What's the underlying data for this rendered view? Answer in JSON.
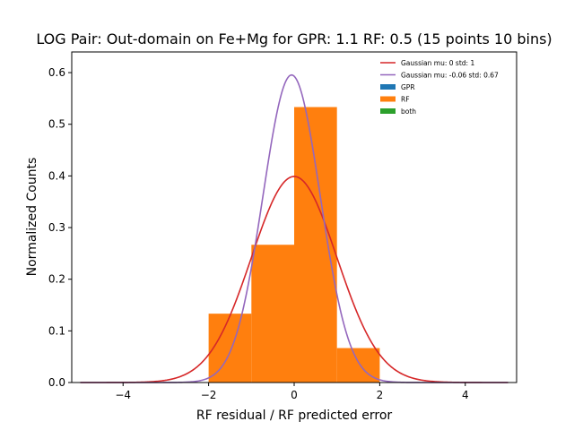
{
  "chart_data": {
    "type": "histogram",
    "title": "LOG Pair: Out-domain on Fe+Mg for GPR: 1.1 RF: 0.5 (15 points 10 bins)",
    "xlabel": "RF residual / RF predicted error",
    "ylabel": "Normalized Counts",
    "xlim": [
      -5.2,
      5.2
    ],
    "ylim": [
      0,
      0.64
    ],
    "xticks": [
      -4,
      -2,
      0,
      2,
      4
    ],
    "xtick_labels": [
      "−4",
      "−2",
      "0",
      "2",
      "4"
    ],
    "yticks": [
      0.0,
      0.1,
      0.2,
      0.3,
      0.4,
      0.5,
      0.6
    ],
    "ytick_labels": [
      "0.0",
      "0.1",
      "0.2",
      "0.3",
      "0.4",
      "0.5",
      "0.6"
    ],
    "grid": false,
    "legend_position": "top-right",
    "bars": {
      "bin_edges": [
        -2,
        -1,
        0,
        1,
        2
      ],
      "values": [
        0.1333,
        0.2667,
        0.5333,
        0.0667
      ],
      "series_name": "RF",
      "color": "#ff7f0e"
    },
    "curves": [
      {
        "name": "Gaussian mu: 0 std: 1",
        "mu": 0,
        "std": 1,
        "x_range": [
          -5,
          5
        ],
        "color": "#d62728"
      },
      {
        "name": "Gaussian mu: -0.06 std: 0.67",
        "mu": -0.06,
        "std": 0.67,
        "x_range": [
          -5,
          5
        ],
        "color": "#9467bd"
      }
    ],
    "legend": [
      {
        "label": "Gaussian mu: 0 std: 1",
        "kind": "line",
        "color": "#d62728"
      },
      {
        "label": "Gaussian mu: -0.06 std: 0.67",
        "kind": "line",
        "color": "#9467bd"
      },
      {
        "label": "GPR",
        "kind": "patch",
        "color": "#1f77b4"
      },
      {
        "label": "RF",
        "kind": "patch",
        "color": "#ff7f0e"
      },
      {
        "label": "both",
        "kind": "patch",
        "color": "#2ca02c"
      }
    ]
  }
}
